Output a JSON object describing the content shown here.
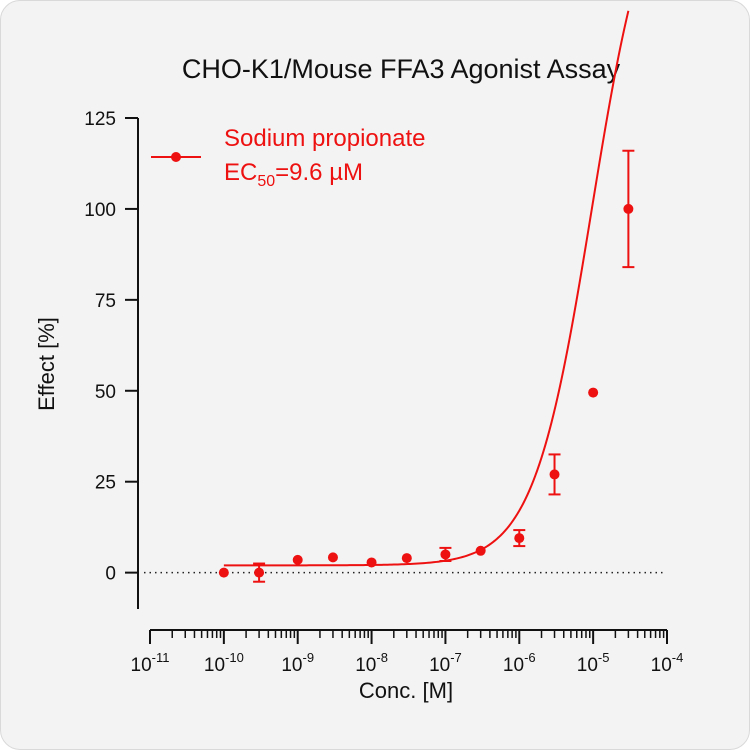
{
  "chart_data": {
    "type": "scatter",
    "title": "CHO-K1/Mouse FFA3 Agonist Assay",
    "xlabel": "Conc. [M]",
    "ylabel": "Effect  [%]",
    "x_scale": "log",
    "xlim": [
      1e-11,
      0.0001
    ],
    "ylim": [
      -10,
      125
    ],
    "x_ticks": [
      {
        "base": "10",
        "exp": "-11",
        "value": 1e-11
      },
      {
        "base": "10",
        "exp": "-10",
        "value": 1e-10
      },
      {
        "base": "10",
        "exp": "-9",
        "value": 1e-09
      },
      {
        "base": "10",
        "exp": "-8",
        "value": 1e-08
      },
      {
        "base": "10",
        "exp": "-7",
        "value": 1e-07
      },
      {
        "base": "10",
        "exp": "-6",
        "value": 1e-06
      },
      {
        "base": "10",
        "exp": "-5",
        "value": 1e-05
      },
      {
        "base": "10",
        "exp": "-4",
        "value": 0.0001
      }
    ],
    "y_ticks": [
      0,
      25,
      50,
      75,
      100,
      125
    ],
    "grid": false,
    "baseline": {
      "y": 0,
      "style": "dotted"
    },
    "legend_position": "top-left",
    "color": "#ee1111",
    "series": [
      {
        "name": "Sodium propionate",
        "annotation": {
          "prefix": "EC",
          "subscript": "50",
          "suffix": "=9.6 µM"
        },
        "points": [
          {
            "x": 1e-10,
            "y": 0.0,
            "err": 0
          },
          {
            "x": 3e-10,
            "y": 0.0,
            "err": 2.5
          },
          {
            "x": 1e-09,
            "y": 3.5,
            "err": 0
          },
          {
            "x": 3e-09,
            "y": 4.2,
            "err": 0
          },
          {
            "x": 1e-08,
            "y": 2.8,
            "err": 0
          },
          {
            "x": 3e-08,
            "y": 4.0,
            "err": 0
          },
          {
            "x": 1e-07,
            "y": 5.0,
            "err": 1.8
          },
          {
            "x": 3e-07,
            "y": 6.0,
            "err": 0
          },
          {
            "x": 1e-06,
            "y": 9.5,
            "err": 2.2
          },
          {
            "x": 3e-06,
            "y": 27.0,
            "err": 5.5
          },
          {
            "x": 1e-05,
            "y": 49.5,
            "err": 0
          },
          {
            "x": 3e-05,
            "y": 100.0,
            "err": 16.0
          }
        ],
        "fit": {
          "bottom": 2.0,
          "top": 198.0,
          "ec50": 9.6e-06,
          "hill": 1.1,
          "x_range": [
            1e-10,
            3e-05
          ]
        }
      }
    ]
  }
}
